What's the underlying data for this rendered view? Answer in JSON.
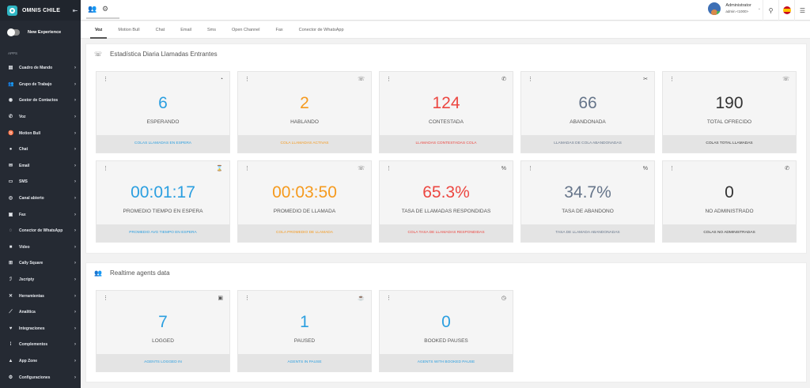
{
  "sidebar": {
    "brand": "OMNIS CHILE",
    "new_experience": "New Experience",
    "apps_label": "APPS",
    "items": [
      {
        "label": "Cuadro de Mando",
        "icon": "dashboard-icon"
      },
      {
        "label": "Grupo de Trabajo",
        "icon": "group-icon"
      },
      {
        "label": "Gestor de Contactos",
        "icon": "contacts-icon"
      },
      {
        "label": "Voz",
        "icon": "phone-icon"
      },
      {
        "label": "Motion Bull",
        "icon": "bull-icon"
      },
      {
        "label": "Chat",
        "icon": "chat-icon"
      },
      {
        "label": "Email",
        "icon": "email-icon"
      },
      {
        "label": "SMS",
        "icon": "sms-icon"
      },
      {
        "label": "Canal abierto",
        "icon": "open-channel-icon"
      },
      {
        "label": "Fax",
        "icon": "fax-icon"
      },
      {
        "label": "Conector de WhatsApp",
        "icon": "whatsapp-icon"
      },
      {
        "label": "Video",
        "icon": "video-icon"
      },
      {
        "label": "Cally Square",
        "icon": "cally-square-icon"
      },
      {
        "label": "Jscripty",
        "icon": "jscripty-icon"
      },
      {
        "label": "Herramientas",
        "icon": "tools-icon"
      },
      {
        "label": "Analítica",
        "icon": "analytics-icon"
      },
      {
        "label": "Integraciones",
        "icon": "integrations-icon"
      },
      {
        "label": "Complementos",
        "icon": "plugins-icon"
      },
      {
        "label": "App Zone",
        "icon": "app-zone-icon"
      },
      {
        "label": "Configuraciones",
        "icon": "settings-icon"
      }
    ]
  },
  "topbar": {
    "user_name": "Administrator",
    "user_role": "admin <1000>"
  },
  "tabs": [
    "Voz",
    "Motion Bull",
    "Chat",
    "Email",
    "Sms",
    "Open Channel",
    "Fax",
    "Conector de WhatsApp"
  ],
  "section1": {
    "title": "Estadística Diaria Llamadas Entrantes",
    "cards": [
      {
        "value": "6",
        "label": "ESPERANDO",
        "footer": "COLAS LLAMADAS EN ESPERA",
        "color": "#2b9fe0",
        "icon": "clock-pie-icon"
      },
      {
        "value": "2",
        "label": "HABLANDO",
        "footer": "COLA LLAMADAS ACTIVAS",
        "color": "#f59a1e",
        "icon": "phone-in-talk-icon"
      },
      {
        "value": "124",
        "label": "CONTESTADA",
        "footer": "LLAMADAS CONTESTADAS COLA",
        "color": "#ec4741",
        "icon": "phone-icon"
      },
      {
        "value": "66",
        "label": "ABANDONADA",
        "footer": "LLAMADAS DE COLA ABANDONADAS",
        "color": "#66758a",
        "icon": "call-end-icon"
      },
      {
        "value": "190",
        "label": "TOTAL OFRECIDO",
        "footer": "COLAS TOTAL LLAMADAS",
        "color": "#333333",
        "icon": "phone-callback-icon"
      },
      {
        "value": "00:01:17",
        "label": "PROMEDIO TIEMPO EN ESPERA",
        "footer": "PROMEDIO AVG TIEMPO EN ESPERA",
        "color": "#2b9fe0",
        "icon": "hourglass-icon"
      },
      {
        "value": "00:03:50",
        "label": "PROMEDIO DE LLAMADA",
        "footer": "COLA PROMEDIO DE LLAMADA",
        "color": "#f59a1e",
        "icon": "phone-in-talk-icon"
      },
      {
        "value": "65.3%",
        "label": "TASA DE LLAMADAS RESPONDIDAS",
        "footer": "COLA TASA DE LLAMADAS RESPONDIDAS",
        "color": "#ec4741",
        "icon": "percent-icon"
      },
      {
        "value": "34.7%",
        "label": "TASA DE ABANDONO",
        "footer": "TASA DE LLAMADA ABANDONADAS",
        "color": "#66758a",
        "icon": "percent-icon"
      },
      {
        "value": "0",
        "label": "NO ADMINISTRADO",
        "footer": "COLAS NO ADMINISTRADAS",
        "color": "#333333",
        "icon": "phone-icon"
      }
    ]
  },
  "section2": {
    "title": "Realtime agents data",
    "cards": [
      {
        "value": "7",
        "label": "LOGGED",
        "footer": "AGENTS LOGGED IN",
        "color": "#2b9fe0",
        "icon": "badge-icon"
      },
      {
        "value": "1",
        "label": "PAUSED",
        "footer": "AGENTS IN PAUSE",
        "color": "#2b9fe0",
        "icon": "coffee-icon"
      },
      {
        "value": "0",
        "label": "BOOKED PAUSES",
        "footer": "AGENTS WITH BOOKED PAUSE",
        "color": "#2b9fe0",
        "icon": "calendar-clock-icon"
      }
    ]
  }
}
